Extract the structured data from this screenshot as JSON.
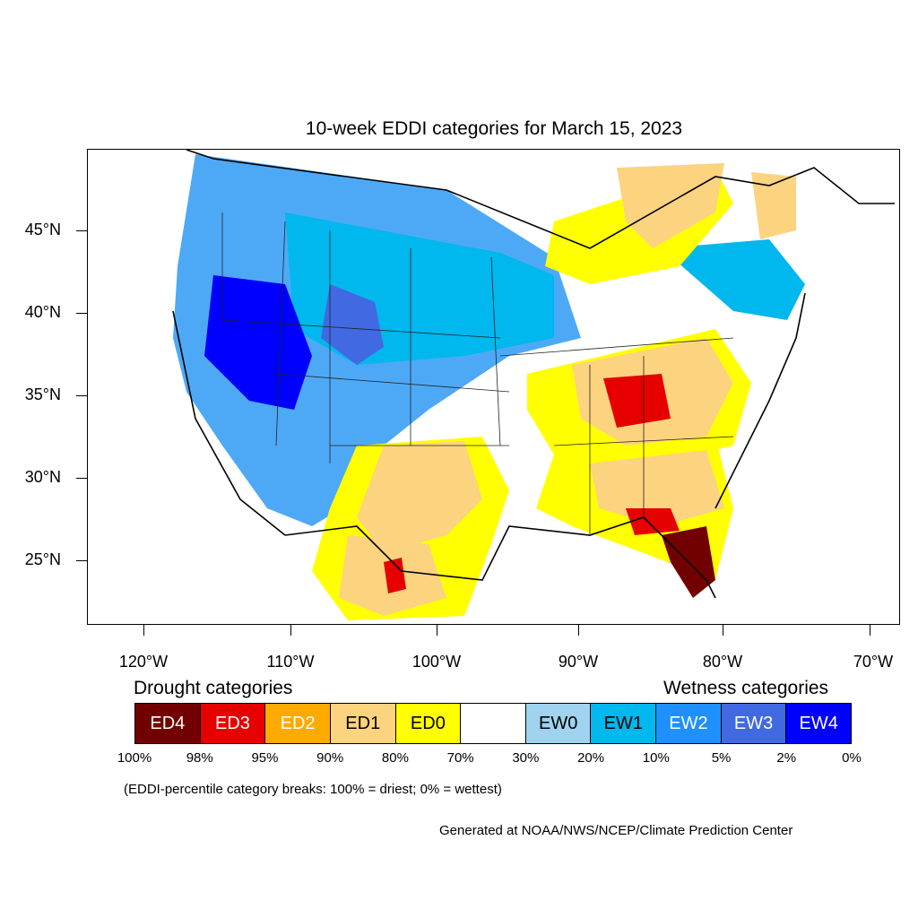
{
  "title": "10-week EDDI categories for March 15, 2023",
  "axes": {
    "y_labels": [
      "45°N",
      "40°N",
      "35°N",
      "30°N",
      "25°N"
    ],
    "x_labels": [
      "120°W",
      "110°W",
      "100°W",
      "90°W",
      "80°W",
      "70°W"
    ]
  },
  "legend": {
    "drought_heading": "Drought categories",
    "wetness_heading": "Wetness categories",
    "categories": [
      {
        "label": "ED4",
        "color": "#730000",
        "text_color": "#ffffff"
      },
      {
        "label": "ED3",
        "color": "#e60000",
        "text_color": "#ffffff"
      },
      {
        "label": "ED2",
        "color": "#ffaa00",
        "text_color": "#ffffff"
      },
      {
        "label": "ED1",
        "color": "#fcd37f",
        "text_color": "#000000"
      },
      {
        "label": "ED0",
        "color": "#ffff00",
        "text_color": "#000000"
      },
      {
        "label": "",
        "color": "#ffffff",
        "text_color": "#000000"
      },
      {
        "label": "EW0",
        "color": "#9fd3ef",
        "text_color": "#000000"
      },
      {
        "label": "EW1",
        "color": "#00b7ee",
        "text_color": "#000000"
      },
      {
        "label": "EW2",
        "color": "#1e90ff",
        "text_color": "#ffffff"
      },
      {
        "label": "EW3",
        "color": "#4169e1",
        "text_color": "#ffffff"
      },
      {
        "label": "EW4",
        "color": "#0000ff",
        "text_color": "#ffffff"
      }
    ],
    "percentiles": [
      "100%",
      "98%",
      "95%",
      "90%",
      "80%",
      "70%",
      "30%",
      "20%",
      "10%",
      "5%",
      "2%",
      "0%"
    ]
  },
  "note": "(EDDI-percentile category breaks: 100% = driest; 0% = wettest)",
  "credit": "Generated at NOAA/NWS/NCEP/Climate Prediction Center"
}
